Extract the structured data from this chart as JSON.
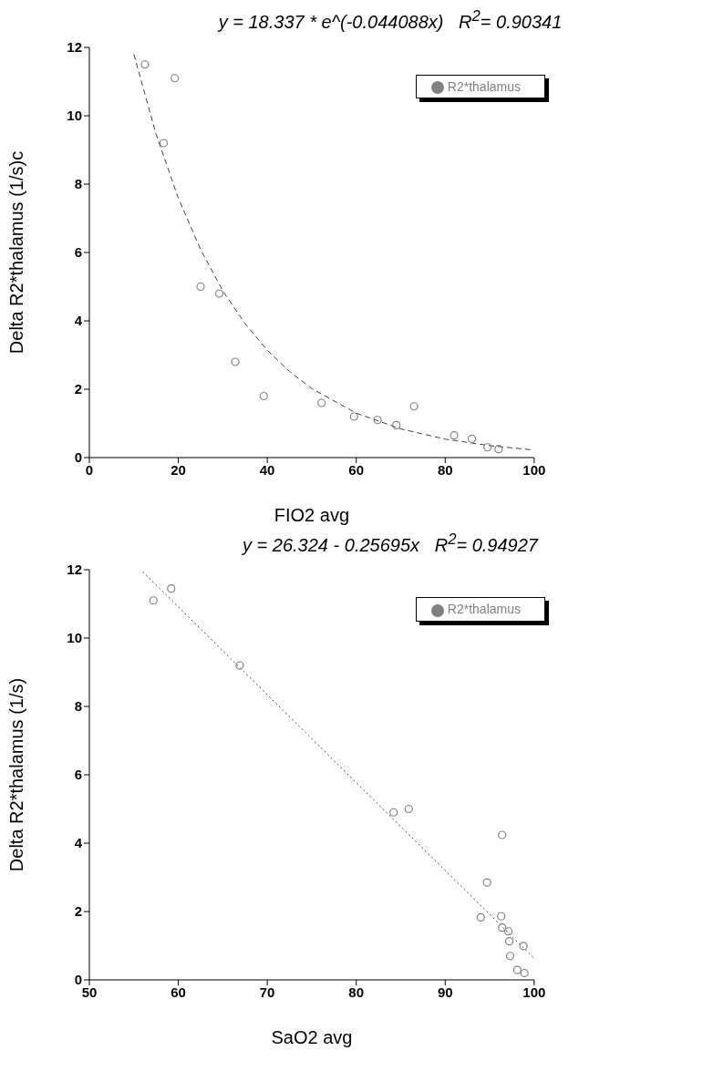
{
  "chart_data": [
    {
      "type": "scatter",
      "title": "y = 18.337 * e^(-0.044088x)   R$^{2}$= 0.90341",
      "xlabel": "FIO2 avg",
      "ylabel": "Delta R2*thalamus (1/s)c",
      "xlim": [
        0,
        100
      ],
      "xticks": [
        0,
        20,
        40,
        60,
        80,
        100
      ],
      "ylim": [
        0,
        12
      ],
      "yticks": [
        0,
        2,
        4,
        6,
        8,
        10,
        12
      ],
      "grid": false,
      "legend": "top right",
      "series": [
        {
          "name": "R2*thalamus",
          "marker": "circle",
          "color": "#808080",
          "x": [
            12.5,
            19.2,
            16.7,
            25,
            29.2,
            32.8,
            39.2,
            52.2,
            59.5,
            64.8,
            69,
            73,
            82,
            86,
            89.5,
            92
          ],
          "values": [
            11.5,
            11.1,
            9.2,
            5.0,
            4.8,
            2.8,
            1.8,
            1.6,
            1.2,
            1.1,
            0.95,
            1.5,
            0.65,
            0.55,
            0.3,
            0.25
          ]
        },
        {
          "type": "line",
          "line_style": "dashed",
          "color": "#404040",
          "x": [
            10,
            15,
            20,
            25,
            30,
            35,
            40,
            45,
            50,
            60,
            70,
            80,
            90,
            100
          ],
          "values": [
            11.8,
            9.46,
            7.59,
            6.09,
            4.88,
            3.92,
            3.14,
            2.52,
            2.02,
            1.3,
            0.84,
            0.54,
            0.35,
            0.22
          ]
        }
      ]
    },
    {
      "type": "scatter",
      "title": "y = 26.324 - 0.25695x   R$^{2}$= 0.94927",
      "xlabel": "SaO2 avg",
      "ylabel": "Delta R2*thalamus (1/s)",
      "xlim": [
        50,
        100
      ],
      "xticks": [
        50,
        60,
        70,
        80,
        90,
        100
      ],
      "ylim": [
        0,
        12
      ],
      "yticks": [
        0,
        2,
        4,
        6,
        8,
        10,
        12
      ],
      "grid": false,
      "legend": "top right",
      "series": [
        {
          "name": "R2*thalamus",
          "marker": "circle",
          "color": "#808080",
          "x": [
            57.2,
            59.2,
            66.9,
            84.2,
            85.9,
            96.4,
            94.7,
            94.0,
            96.3,
            96.4,
            97.1,
            97.2,
            98.8,
            97.3,
            98.1,
            98.9
          ],
          "values": [
            11.1,
            11.45,
            9.2,
            4.9,
            5.0,
            4.24,
            2.85,
            1.83,
            1.86,
            1.53,
            1.42,
            1.13,
            0.99,
            0.7,
            0.29,
            0.2
          ]
        },
        {
          "type": "line",
          "line_style": "dotted",
          "color": "#404040",
          "x": [
            56,
            100
          ],
          "values": [
            11.94,
            0.63
          ]
        }
      ]
    }
  ]
}
